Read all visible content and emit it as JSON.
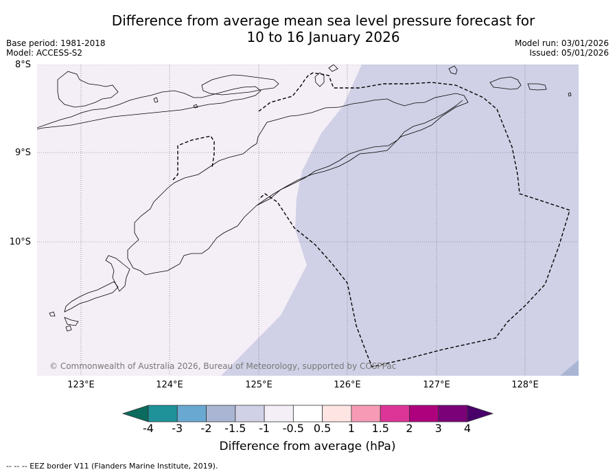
{
  "title": {
    "line1": "Difference from average mean sea level pressure forecast for",
    "line2": "10 to 16 January 2026"
  },
  "meta": {
    "base_period": "Base period: 1981-2018",
    "model": "Model: ACCESS-S2",
    "model_run": "Model run: 03/01/2026",
    "issued": "Issued: 05/01/2026"
  },
  "axes": {
    "lat_labels": [
      "8°S",
      "9°S",
      "10°S"
    ],
    "lon_labels": [
      "123°E",
      "124°E",
      "125°E",
      "126°E",
      "127°E",
      "128°E"
    ]
  },
  "copyright": "© Commonwealth of Australia 2026, Bureau of Meteorology, supported by COSPPac",
  "colorbar": {
    "ticks": [
      "-4",
      "-3",
      "-2",
      "-1.5",
      "-1",
      "-0.5",
      "0.5",
      "1",
      "1.5",
      "2",
      "3",
      "4"
    ],
    "colors": [
      "#0b6b5e",
      "#1e9199",
      "#69a8d1",
      "#a9b5d3",
      "#d0d1e6",
      "#f4eef6",
      "#ffffff",
      "#fee5e3",
      "#f69ab5",
      "#dd3597",
      "#ad017e",
      "#7a0177",
      "#49006a"
    ],
    "label": "Difference from average (hPa)"
  },
  "map_colors": {
    "land_region": "#f4eef6",
    "sea_region": "#d0d1e6",
    "corner": "#a9b5d3"
  },
  "footnote": "-- -- -- EEZ border V11 (Flanders Marine Institute, 2019)."
}
